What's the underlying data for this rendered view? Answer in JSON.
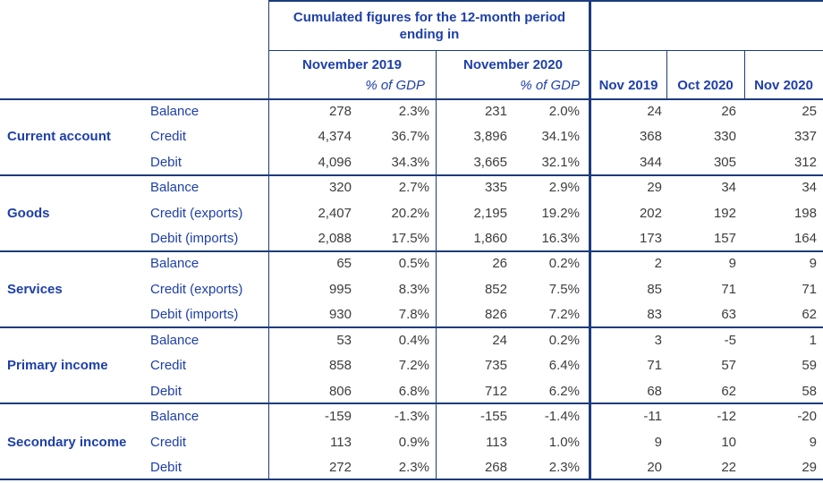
{
  "header": {
    "cumulated_title": "Cumulated figures for the 12-month period ending in",
    "period_columns": [
      {
        "label": "November 2019",
        "sub": "% of GDP"
      },
      {
        "label": "November 2020",
        "sub": "% of GDP"
      }
    ],
    "month_columns": [
      "Nov 2019",
      "Oct 2020",
      "Nov 2020"
    ]
  },
  "colors": {
    "label_blue": "#1e3fa9",
    "border_navy": "#1d3b7d",
    "number_color": "#3d3d3d"
  },
  "sections": [
    {
      "name": "Current account",
      "rows": [
        {
          "label": "Balance",
          "values": [
            "278",
            "2.3%",
            "231",
            "2.0%",
            "24",
            "26",
            "25"
          ]
        },
        {
          "label": "Credit",
          "values": [
            "4,374",
            "36.7%",
            "3,896",
            "34.1%",
            "368",
            "330",
            "337"
          ]
        },
        {
          "label": "Debit",
          "values": [
            "4,096",
            "34.3%",
            "3,665",
            "32.1%",
            "344",
            "305",
            "312"
          ]
        }
      ]
    },
    {
      "name": "Goods",
      "rows": [
        {
          "label": "Balance",
          "values": [
            "320",
            "2.7%",
            "335",
            "2.9%",
            "29",
            "34",
            "34"
          ]
        },
        {
          "label": "Credit (exports)",
          "values": [
            "2,407",
            "20.2%",
            "2,195",
            "19.2%",
            "202",
            "192",
            "198"
          ]
        },
        {
          "label": "Debit (imports)",
          "values": [
            "2,088",
            "17.5%",
            "1,860",
            "16.3%",
            "173",
            "157",
            "164"
          ]
        }
      ]
    },
    {
      "name": "Services",
      "rows": [
        {
          "label": "Balance",
          "values": [
            "65",
            "0.5%",
            "26",
            "0.2%",
            "2",
            "9",
            "9"
          ]
        },
        {
          "label": "Credit (exports)",
          "values": [
            "995",
            "8.3%",
            "852",
            "7.5%",
            "85",
            "71",
            "71"
          ]
        },
        {
          "label": "Debit (imports)",
          "values": [
            "930",
            "7.8%",
            "826",
            "7.2%",
            "83",
            "63",
            "62"
          ]
        }
      ]
    },
    {
      "name": "Primary income",
      "rows": [
        {
          "label": "Balance",
          "values": [
            "53",
            "0.4%",
            "24",
            "0.2%",
            "3",
            "-5",
            "1"
          ]
        },
        {
          "label": "Credit",
          "values": [
            "858",
            "7.2%",
            "735",
            "6.4%",
            "71",
            "57",
            "59"
          ]
        },
        {
          "label": "Debit",
          "values": [
            "806",
            "6.8%",
            "712",
            "6.2%",
            "68",
            "62",
            "58"
          ]
        }
      ]
    },
    {
      "name": "Secondary income",
      "rows": [
        {
          "label": "Balance",
          "values": [
            "-159",
            "-1.3%",
            "-155",
            "-1.4%",
            "-11",
            "-12",
            "-20"
          ]
        },
        {
          "label": "Credit",
          "values": [
            "113",
            "0.9%",
            "113",
            "1.0%",
            "9",
            "10",
            "9"
          ]
        },
        {
          "label": "Debit",
          "values": [
            "272",
            "2.3%",
            "268",
            "2.3%",
            "20",
            "22",
            "29"
          ]
        }
      ]
    }
  ]
}
